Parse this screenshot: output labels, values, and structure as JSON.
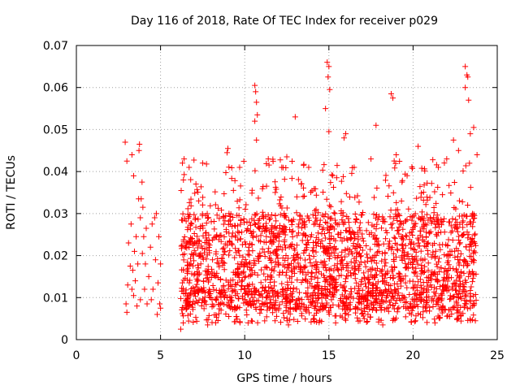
{
  "chart_data": {
    "type": "scatter",
    "title": "Day 116 of 2018, Rate Of TEC Index for receiver p029",
    "xlabel": "GPS time / hours",
    "ylabel": "ROTI / TECUs",
    "xlim": [
      0,
      25
    ],
    "ylim": [
      0,
      0.07
    ],
    "xticks": [
      0,
      5,
      10,
      15,
      20,
      25
    ],
    "xtick_labels": [
      "0",
      "5",
      "10",
      "15",
      "20",
      "25"
    ],
    "yticks": [
      0,
      0.01,
      0.02,
      0.03,
      0.04,
      0.05,
      0.06,
      0.07
    ],
    "ytick_labels": [
      "0",
      "0.01",
      "0.02",
      "0.03",
      "0.04",
      "0.05",
      "0.06",
      "0.07"
    ],
    "grid": true,
    "marker": "+",
    "color": "#ff0000",
    "series": [
      {
        "name": "ROTI",
        "points": [
          [
            2.9,
            0.047
          ],
          [
            2.95,
            0.0085
          ],
          [
            3.0,
            0.0065
          ],
          [
            3.0,
            0.0425
          ],
          [
            3.05,
            0.013
          ],
          [
            3.1,
            0.023
          ],
          [
            3.2,
            0.0175
          ],
          [
            3.25,
            0.0275
          ],
          [
            3.3,
            0.044
          ],
          [
            3.3,
            0.012
          ],
          [
            3.35,
            0.0165
          ],
          [
            3.4,
            0.039
          ],
          [
            3.4,
            0.0105
          ],
          [
            3.45,
            0.021
          ],
          [
            3.5,
            0.014
          ],
          [
            3.55,
            0.0245
          ],
          [
            3.6,
            0.008
          ],
          [
            3.65,
            0.018
          ],
          [
            3.7,
            0.0335
          ],
          [
            3.72,
            0.045
          ],
          [
            3.75,
            0.0465
          ],
          [
            3.8,
            0.029
          ],
          [
            3.8,
            0.0095
          ],
          [
            3.85,
            0.0335
          ],
          [
            3.9,
            0.0375
          ],
          [
            3.92,
            0.0205
          ],
          [
            3.95,
            0.0315
          ],
          [
            4.0,
            0.0245
          ],
          [
            4.05,
            0.012
          ],
          [
            4.1,
            0.018
          ],
          [
            4.15,
            0.0265
          ],
          [
            4.2,
            0.0085
          ],
          [
            4.3,
            0.015
          ],
          [
            4.4,
            0.022
          ],
          [
            4.45,
            0.0095
          ],
          [
            4.5,
            0.0275
          ],
          [
            4.55,
            0.012
          ],
          [
            4.65,
            0.029
          ],
          [
            4.7,
            0.019
          ],
          [
            4.75,
            0.03
          ],
          [
            4.8,
            0.006
          ],
          [
            4.85,
            0.0135
          ],
          [
            4.9,
            0.0245
          ],
          [
            4.95,
            0.0085
          ],
          [
            5.0,
            0.0075
          ],
          [
            5.0,
            0.018
          ],
          [
            10.6,
            0.0605
          ],
          [
            10.65,
            0.059
          ],
          [
            10.7,
            0.0565
          ],
          [
            10.75,
            0.0535
          ],
          [
            10.6,
            0.052
          ],
          [
            10.7,
            0.0475
          ],
          [
            14.9,
            0.066
          ],
          [
            15.0,
            0.065
          ],
          [
            14.95,
            0.0625
          ],
          [
            15.05,
            0.0595
          ],
          [
            14.8,
            0.055
          ],
          [
            15.0,
            0.0495
          ],
          [
            18.7,
            0.0585
          ],
          [
            18.8,
            0.0575
          ],
          [
            17.8,
            0.051
          ],
          [
            16.0,
            0.049
          ],
          [
            13.0,
            0.053
          ],
          [
            15.9,
            0.048
          ],
          [
            23.1,
            0.065
          ],
          [
            23.2,
            0.063
          ],
          [
            23.25,
            0.0625
          ],
          [
            23.1,
            0.06
          ],
          [
            23.3,
            0.057
          ],
          [
            23.6,
            0.0505
          ],
          [
            23.4,
            0.049
          ],
          [
            22.4,
            0.0475
          ],
          [
            20.3,
            0.046
          ],
          [
            9.0,
            0.0455
          ],
          [
            8.95,
            0.0445
          ],
          [
            12.5,
            0.0435
          ],
          [
            13.5,
            0.0415
          ],
          [
            6.3,
            0.042
          ],
          [
            6.4,
            0.043
          ],
          [
            7.5,
            0.042
          ],
          [
            9.7,
            0.041
          ],
          [
            11.4,
            0.043
          ],
          [
            12.2,
            0.041
          ],
          [
            13.8,
            0.041
          ],
          [
            16.5,
            0.041
          ],
          [
            17.5,
            0.043
          ],
          [
            19.0,
            0.044
          ],
          [
            21.5,
            0.041
          ],
          [
            22.0,
            0.043
          ],
          [
            22.7,
            0.045
          ],
          [
            23.8,
            0.044
          ],
          [
            6.2,
            0.0025
          ],
          [
            6.35,
            0.004
          ],
          [
            7.8,
            0.0035
          ],
          [
            9.5,
            0.0055
          ],
          [
            10.2,
            0.004
          ],
          [
            11.8,
            0.0045
          ],
          [
            12.6,
            0.0035
          ],
          [
            14.1,
            0.005
          ],
          [
            15.4,
            0.004
          ],
          [
            17.1,
            0.005
          ],
          [
            18.2,
            0.0035
          ],
          [
            19.9,
            0.006
          ],
          [
            21.3,
            0.004
          ],
          [
            22.6,
            0.005
          ],
          [
            23.7,
            0.0045
          ]
        ],
        "band": {
          "x_range": [
            6.2,
            23.8
          ],
          "median_low": 0.007,
          "median_high": 0.03,
          "count": 2400
        }
      }
    ]
  }
}
